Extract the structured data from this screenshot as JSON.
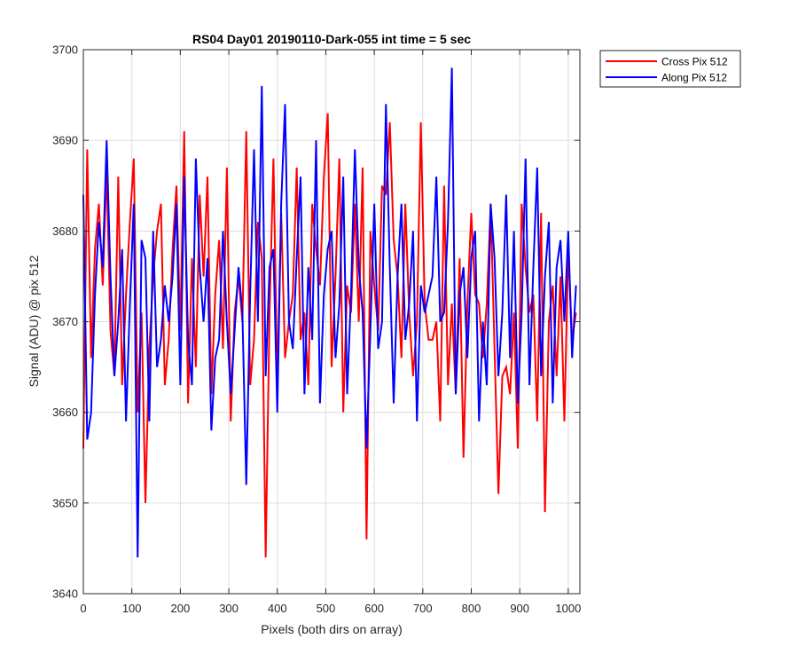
{
  "chart_data": {
    "type": "line",
    "title": "RS04 Day01 20190110-Dark-055 int time = 5 sec",
    "xlabel": "Pixels (both dirs on array)",
    "ylabel": "Signal (ADU) @ pix 512",
    "xlim": [
      0,
      1024
    ],
    "ylim": [
      3640,
      3700
    ],
    "xticks": [
      0,
      100,
      200,
      300,
      400,
      500,
      600,
      700,
      800,
      900,
      1000
    ],
    "yticks": [
      3640,
      3650,
      3660,
      3670,
      3680,
      3690,
      3700
    ],
    "grid": true,
    "legend_position": "outside-top-right",
    "series": [
      {
        "name": "Cross Pix 512",
        "color": "#ff0000",
        "x_step": 8,
        "values": [
          3656,
          3689,
          3666,
          3678,
          3683,
          3674,
          3687,
          3669,
          3664,
          3686,
          3663,
          3673,
          3681,
          3688,
          3660,
          3671,
          3650,
          3667,
          3675,
          3680,
          3683,
          3663,
          3668,
          3678,
          3685,
          3669,
          3691,
          3661,
          3677,
          3665,
          3684,
          3675,
          3686,
          3662,
          3673,
          3679,
          3667,
          3687,
          3659,
          3671,
          3675,
          3670,
          3691,
          3663,
          3668,
          3681,
          3677,
          3644,
          3671,
          3688,
          3663,
          3682,
          3666,
          3670,
          3673,
          3687,
          3668,
          3671,
          3663,
          3683,
          3678,
          3674,
          3686,
          3693,
          3665,
          3675,
          3688,
          3660,
          3674,
          3671,
          3683,
          3670,
          3687,
          3646,
          3680,
          3674,
          3669,
          3685,
          3684,
          3692,
          3679,
          3675,
          3666,
          3683,
          3671,
          3664,
          3670,
          3692,
          3672,
          3668,
          3668,
          3670,
          3659,
          3685,
          3663,
          3672,
          3662,
          3677,
          3655,
          3672,
          3682,
          3673,
          3672,
          3666,
          3672,
          3683,
          3667,
          3651,
          3664,
          3665,
          3662,
          3671,
          3656,
          3683,
          3676,
          3671,
          3673,
          3659,
          3682,
          3649,
          3670,
          3674,
          3664,
          3675,
          3659,
          3678,
          3668,
          3671
        ]
      },
      {
        "name": "Along Pix 512",
        "color": "#0000ff",
        "x_step": 8,
        "values": [
          3684,
          3657,
          3660,
          3673,
          3681,
          3676,
          3690,
          3675,
          3664,
          3670,
          3678,
          3659,
          3672,
          3683,
          3644,
          3679,
          3677,
          3659,
          3680,
          3665,
          3668,
          3674,
          3670,
          3675,
          3683,
          3663,
          3686,
          3668,
          3663,
          3688,
          3676,
          3670,
          3677,
          3658,
          3666,
          3668,
          3680,
          3670,
          3662,
          3669,
          3676,
          3671,
          3652,
          3673,
          3689,
          3670,
          3696,
          3664,
          3676,
          3678,
          3660,
          3683,
          3694,
          3670,
          3667,
          3677,
          3686,
          3662,
          3676,
          3668,
          3690,
          3661,
          3673,
          3678,
          3680,
          3666,
          3672,
          3686,
          3662,
          3673,
          3689,
          3676,
          3671,
          3656,
          3669,
          3683,
          3667,
          3670,
          3694,
          3676,
          3661,
          3675,
          3683,
          3668,
          3672,
          3680,
          3659,
          3674,
          3671,
          3673,
          3675,
          3686,
          3670,
          3671,
          3681,
          3698,
          3662,
          3673,
          3676,
          3666,
          3677,
          3680,
          3659,
          3670,
          3663,
          3683,
          3677,
          3664,
          3671,
          3684,
          3666,
          3680,
          3661,
          3671,
          3688,
          3663,
          3676,
          3687,
          3664,
          3675,
          3681,
          3661,
          3676,
          3679,
          3670,
          3680,
          3666,
          3674
        ]
      }
    ]
  }
}
